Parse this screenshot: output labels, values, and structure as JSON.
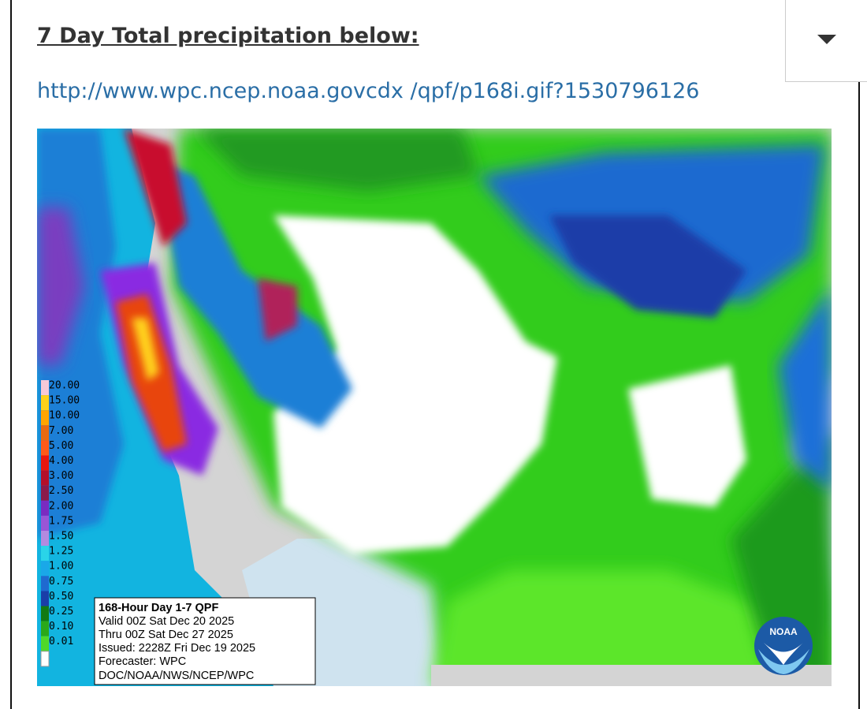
{
  "header": {
    "title": "7 Day Total precipitation below:",
    "link": "http://www.wpc.ncep.noaa.govcdx /qpf/p168i.gif?1530796126"
  },
  "map": {
    "legend": [
      "20.00",
      "15.00",
      "10.00",
      "7.00",
      "5.00",
      "4.00",
      "3.00",
      "2.50",
      "2.00",
      "1.75",
      "1.50",
      "1.25",
      "1.00",
      "0.75",
      "0.50",
      "0.25",
      "0.10",
      "0.01"
    ],
    "info": [
      "168-Hour Day 1-7 QPF",
      "Valid 00Z Sat Dec 20 2025",
      "Thru 00Z Sat Dec 27 2025",
      "Issued: 2228Z Fri Dec 19 2025",
      "Forecaster: WPC",
      "DOC/NOAA/NWS/NCEP/WPC"
    ],
    "logo": "NOAA"
  }
}
